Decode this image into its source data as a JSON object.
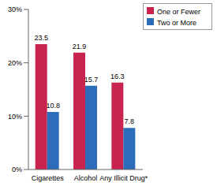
{
  "chart_data": {
    "type": "bar",
    "categories": [
      "Cigarettes",
      "Alcohol",
      "Any Illicit Drug*"
    ],
    "series": [
      {
        "name": "One or Fewer",
        "color": "#c9234f",
        "values": [
          23.5,
          21.9,
          16.3
        ]
      },
      {
        "name": "Two or More",
        "color": "#2c6cb8",
        "values": [
          10.8,
          15.7,
          7.8
        ]
      }
    ],
    "ylim": [
      0,
      30
    ],
    "yticks": [
      {
        "value": 0,
        "label": "0%"
      },
      {
        "value": 10,
        "label": "10%"
      },
      {
        "value": 20,
        "label": "20%"
      },
      {
        "value": 30,
        "label": "30%"
      }
    ],
    "grid": false,
    "legend": "top-right",
    "data_labels": true
  }
}
